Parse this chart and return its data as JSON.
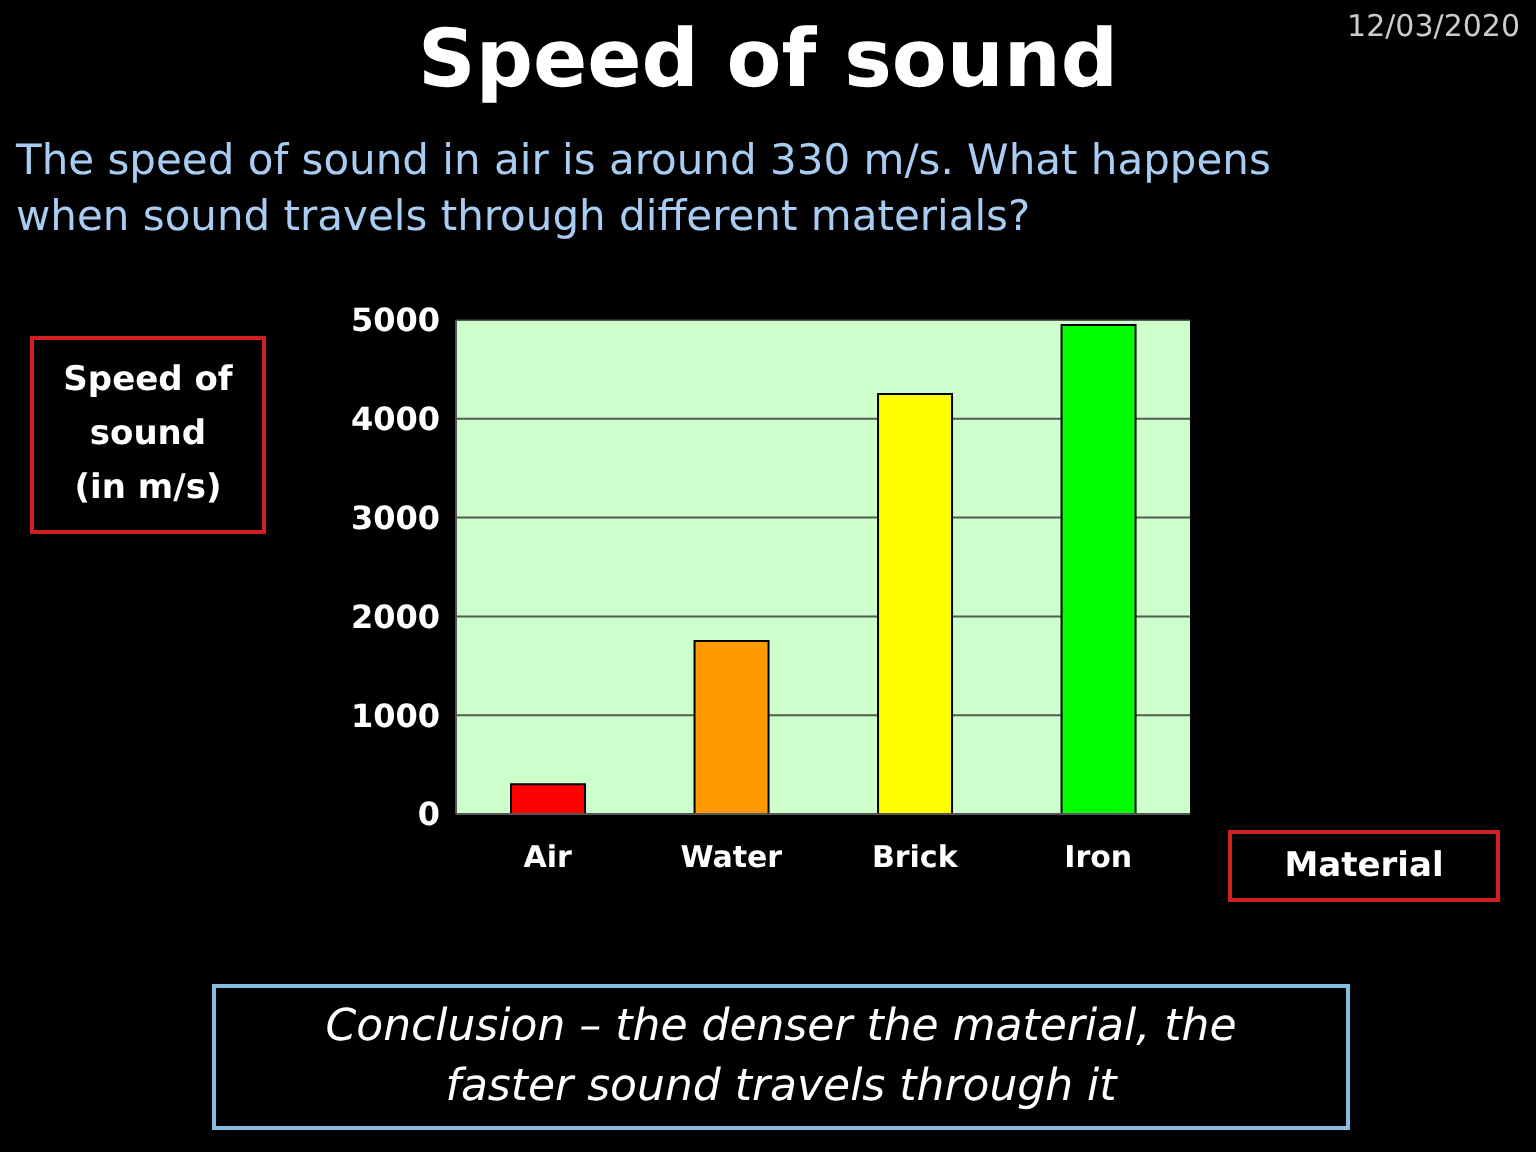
{
  "chart_data": {
    "type": "bar",
    "title": "Speed of sound",
    "subtitle": "The speed of sound in air is around 330 m/s. What happens when sound travels through different materials?",
    "xlabel": "Material",
    "ylabel": "Speed of sound (in m/s)",
    "annotations": [
      "12/03/2020",
      "Conclusion – the denser the material, the faster sound travels through it"
    ],
    "categories": [
      "Air",
      "Water",
      "Brick",
      "Iron"
    ],
    "values": [
      300,
      1750,
      4250,
      4950
    ],
    "colors": [
      "#ff0000",
      "#ff9900",
      "#ffff00",
      "#00ff00"
    ],
    "ylim": [
      0,
      5000
    ],
    "yticks": [
      0,
      1000,
      2000,
      3000,
      4000,
      5000
    ],
    "grid": "y"
  }
}
